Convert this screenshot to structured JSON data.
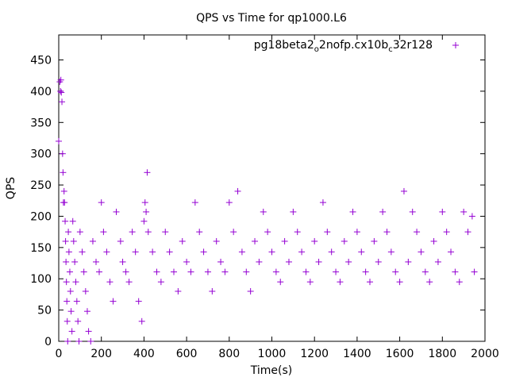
{
  "chart_data": {
    "type": "scatter",
    "title": "QPS vs Time for qp1000.L6",
    "xlabel": "Time(s)",
    "ylabel": "QPS",
    "xlim": [
      0,
      2000
    ],
    "ylim": [
      0,
      490
    ],
    "x_ticks": [
      0,
      200,
      400,
      600,
      800,
      1000,
      1200,
      1400,
      1600,
      1800,
      2000
    ],
    "y_ticks": [
      0,
      50,
      100,
      150,
      200,
      250,
      300,
      350,
      400,
      450
    ],
    "x_tick_labels": [
      "0",
      "200",
      "400",
      "600",
      "800",
      "1000",
      "1200",
      "1400",
      "1600",
      "1800",
      "2000"
    ],
    "y_tick_labels": [
      "0",
      "50",
      "100",
      "150",
      "200",
      "250",
      "300",
      "350",
      "400",
      "450"
    ],
    "legend_position": "top-right",
    "grid": false,
    "marker": "+",
    "series": [
      {
        "name": "pg18beta2_o2nofp.cx10b_c32r128",
        "legend_parts": {
          "t1": "pg18beta2",
          "s1": "o",
          "t2": "2nofp.cx10b",
          "s2": "c",
          "t3": "32r128"
        },
        "color": "#9400d3",
        "points": [
          [
            0,
            320
          ],
          [
            5,
            415
          ],
          [
            8,
            400
          ],
          [
            10,
            418
          ],
          [
            12,
            398
          ],
          [
            15,
            383
          ],
          [
            18,
            300
          ],
          [
            20,
            270
          ],
          [
            22,
            222
          ],
          [
            25,
            240
          ],
          [
            27,
            222
          ],
          [
            30,
            192
          ],
          [
            32,
            160
          ],
          [
            34,
            127
          ],
          [
            36,
            95
          ],
          [
            38,
            64
          ],
          [
            40,
            32
          ],
          [
            42,
            0
          ],
          [
            45,
            175
          ],
          [
            48,
            143
          ],
          [
            52,
            111
          ],
          [
            55,
            80
          ],
          [
            58,
            48
          ],
          [
            62,
            16
          ],
          [
            66,
            192
          ],
          [
            70,
            160
          ],
          [
            75,
            127
          ],
          [
            80,
            95
          ],
          [
            85,
            64
          ],
          [
            90,
            32
          ],
          [
            95,
            0
          ],
          [
            100,
            175
          ],
          [
            110,
            143
          ],
          [
            118,
            111
          ],
          [
            126,
            80
          ],
          [
            134,
            48
          ],
          [
            140,
            16
          ],
          [
            150,
            0
          ],
          [
            160,
            160
          ],
          [
            175,
            127
          ],
          [
            190,
            111
          ],
          [
            200,
            222
          ],
          [
            210,
            175
          ],
          [
            225,
            143
          ],
          [
            240,
            95
          ],
          [
            255,
            64
          ],
          [
            270,
            207
          ],
          [
            290,
            160
          ],
          [
            300,
            127
          ],
          [
            315,
            111
          ],
          [
            330,
            95
          ],
          [
            345,
            175
          ],
          [
            360,
            143
          ],
          [
            375,
            64
          ],
          [
            390,
            32
          ],
          [
            400,
            192
          ],
          [
            405,
            222
          ],
          [
            410,
            207
          ],
          [
            415,
            270
          ],
          [
            420,
            175
          ],
          [
            440,
            143
          ],
          [
            460,
            111
          ],
          [
            480,
            95
          ],
          [
            500,
            175
          ],
          [
            520,
            143
          ],
          [
            540,
            111
          ],
          [
            560,
            80
          ],
          [
            580,
            160
          ],
          [
            600,
            127
          ],
          [
            620,
            111
          ],
          [
            640,
            222
          ],
          [
            660,
            175
          ],
          [
            680,
            143
          ],
          [
            700,
            111
          ],
          [
            720,
            80
          ],
          [
            740,
            160
          ],
          [
            760,
            127
          ],
          [
            780,
            111
          ],
          [
            800,
            222
          ],
          [
            820,
            175
          ],
          [
            840,
            240
          ],
          [
            860,
            143
          ],
          [
            880,
            111
          ],
          [
            900,
            80
          ],
          [
            920,
            160
          ],
          [
            940,
            127
          ],
          [
            960,
            207
          ],
          [
            980,
            175
          ],
          [
            1000,
            143
          ],
          [
            1020,
            111
          ],
          [
            1040,
            95
          ],
          [
            1060,
            160
          ],
          [
            1080,
            127
          ],
          [
            1100,
            207
          ],
          [
            1120,
            175
          ],
          [
            1140,
            143
          ],
          [
            1160,
            111
          ],
          [
            1180,
            95
          ],
          [
            1200,
            160
          ],
          [
            1220,
            127
          ],
          [
            1240,
            222
          ],
          [
            1260,
            175
          ],
          [
            1280,
            143
          ],
          [
            1300,
            111
          ],
          [
            1320,
            95
          ],
          [
            1340,
            160
          ],
          [
            1360,
            127
          ],
          [
            1380,
            207
          ],
          [
            1400,
            175
          ],
          [
            1420,
            143
          ],
          [
            1440,
            111
          ],
          [
            1460,
            95
          ],
          [
            1480,
            160
          ],
          [
            1500,
            127
          ],
          [
            1520,
            207
          ],
          [
            1540,
            175
          ],
          [
            1560,
            143
          ],
          [
            1580,
            111
          ],
          [
            1600,
            95
          ],
          [
            1620,
            240
          ],
          [
            1640,
            127
          ],
          [
            1660,
            207
          ],
          [
            1680,
            175
          ],
          [
            1700,
            143
          ],
          [
            1720,
            111
          ],
          [
            1740,
            95
          ],
          [
            1760,
            160
          ],
          [
            1780,
            127
          ],
          [
            1800,
            207
          ],
          [
            1820,
            175
          ],
          [
            1840,
            143
          ],
          [
            1860,
            111
          ],
          [
            1880,
            95
          ],
          [
            1900,
            207
          ],
          [
            1920,
            175
          ],
          [
            1940,
            200
          ],
          [
            1950,
            111
          ]
        ]
      }
    ]
  }
}
